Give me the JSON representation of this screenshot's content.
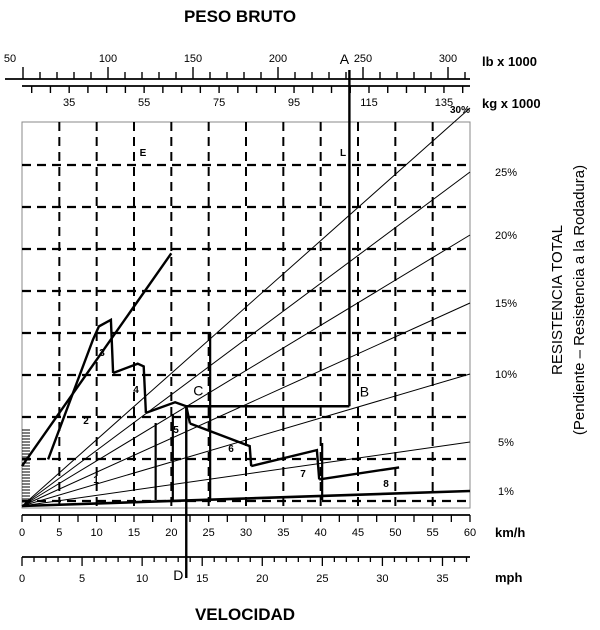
{
  "chart_data": {
    "type": "line",
    "title": "PESO BRUTO",
    "xlabel": "VELOCIDAD",
    "ylabel": "RESISTENCIA TOTAL",
    "ylabel2": "(Pendiente – Resistencia a la Rodadura)",
    "axes": {
      "lb": {
        "unit": "lb x 1000",
        "ticks": [
          50,
          100,
          150,
          200,
          250,
          300
        ]
      },
      "kg": {
        "unit": "kg x 1000",
        "ticks": [
          35,
          55,
          75,
          95,
          115,
          135
        ]
      },
      "kmh": {
        "unit": "km/h",
        "ticks": [
          0,
          5,
          10,
          15,
          20,
          25,
          30,
          35,
          40,
          45,
          50,
          55,
          60
        ]
      },
      "mph": {
        "unit": "mph",
        "ticks": [
          0,
          5,
          10,
          15,
          20,
          25,
          30,
          35
        ]
      }
    },
    "resistance_lines": [
      "1%",
      "5%",
      "10%",
      "15%",
      "20%",
      "25%",
      "30%"
    ],
    "point_labels": [
      "A",
      "B",
      "C",
      "D",
      "E",
      "L"
    ],
    "gear_labels": [
      "1",
      "2",
      "3",
      "4",
      "5",
      "6",
      "7",
      "8"
    ],
    "example": {
      "weight_lb_x1000": 242,
      "speed_kmh": 22,
      "resistance_pct": 7.5
    },
    "gear_curves": [
      {
        "name": "2",
        "x": [
          0,
          5,
          10,
          15,
          20
        ],
        "y": [
          3.0,
          7.0,
          11.0,
          15.0,
          19.0
        ]
      },
      {
        "name": "3",
        "x": [
          3.5,
          9.5,
          10.3,
          11.9,
          12.2
        ],
        "y": [
          3.5,
          12.5,
          13.5,
          14.0,
          10.0
        ]
      },
      {
        "name": "4",
        "x": [
          12.2,
          15.5,
          16.3,
          16.6
        ],
        "y": [
          10.0,
          10.7,
          10.5,
          7.0
        ]
      },
      {
        "name": "5",
        "x": [
          16.6,
          20.5,
          22,
          22.5
        ],
        "y": [
          7.0,
          7.8,
          7.5,
          6.2
        ]
      },
      {
        "name": "6",
        "x": [
          22.5,
          30.5,
          30.7
        ],
        "y": [
          6.2,
          4.5,
          3.0
        ]
      },
      {
        "name": "7",
        "x": [
          30.7,
          39.5,
          39.8
        ],
        "y": [
          3.0,
          4.2,
          2.0
        ]
      },
      {
        "name": "8",
        "x": [
          39.8,
          50.5
        ],
        "y": [
          2.0,
          2.9
        ]
      }
    ]
  }
}
